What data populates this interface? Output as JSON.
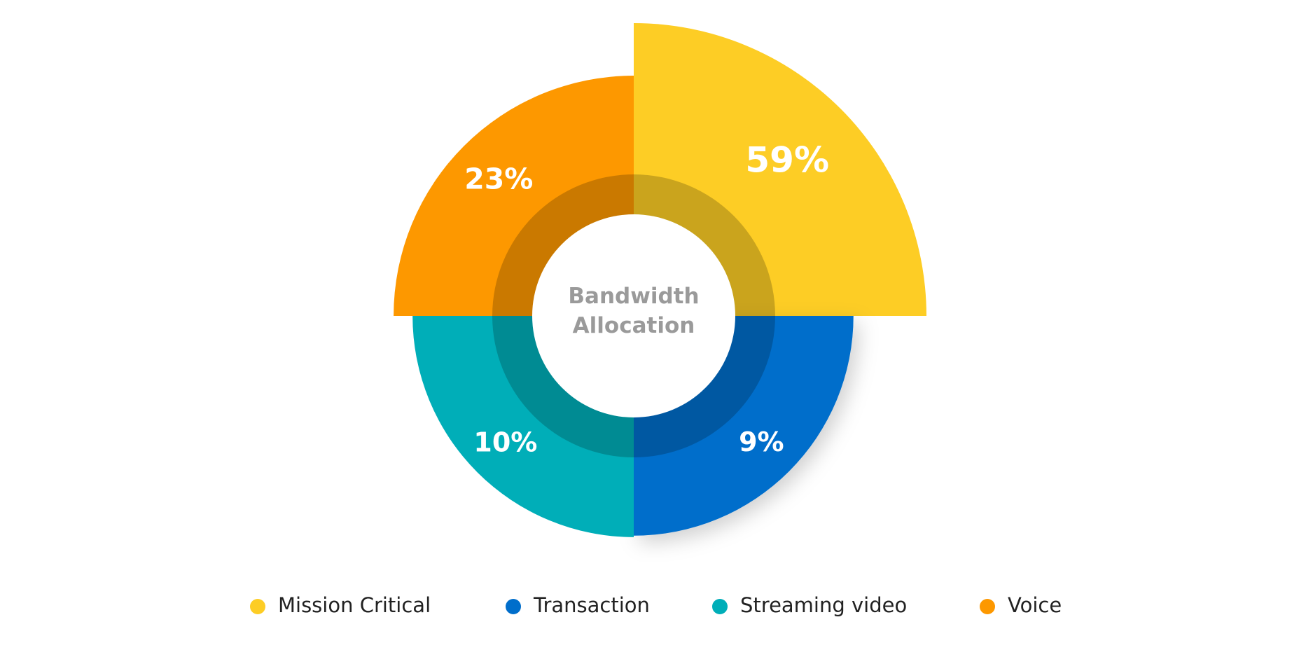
{
  "chart_data": {
    "type": "polar_area",
    "title": "Bandwidth Allocation",
    "categories": [
      "Mission Critical",
      "Transaction",
      "Streaming video",
      "Voice"
    ],
    "values": [
      59,
      9,
      10,
      23
    ],
    "value_labels": [
      "59%",
      "9%",
      "10%",
      "23%"
    ],
    "colors": [
      "#fdcd25",
      "#006ecb",
      "#00aeb8",
      "#fd9800"
    ]
  }
}
